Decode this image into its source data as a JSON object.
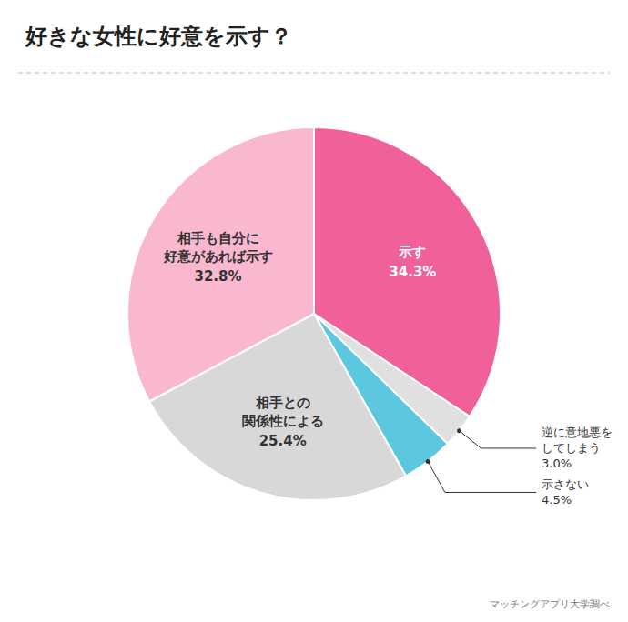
{
  "chart_data": {
    "type": "pie",
    "title": "好きな女性に好意を示す？",
    "categories": [
      "示す",
      "逆に意地悪を\nしてしまう",
      "示さない",
      "相手との\n関係性による",
      "相手も自分に\n好意があれば示す"
    ],
    "values": [
      34.3,
      3.0,
      4.5,
      25.4,
      32.8
    ],
    "value_labels": [
      "34.3%",
      "3.0%",
      "4.5%",
      "25.4%",
      "32.8%"
    ],
    "colors": [
      "#F0609A",
      "#E0E0E0",
      "#5BC8E0",
      "#D8D8D8",
      "#F9B8D0"
    ],
    "data_labels": true,
    "source": "マッチングアプリ大学調べ"
  }
}
